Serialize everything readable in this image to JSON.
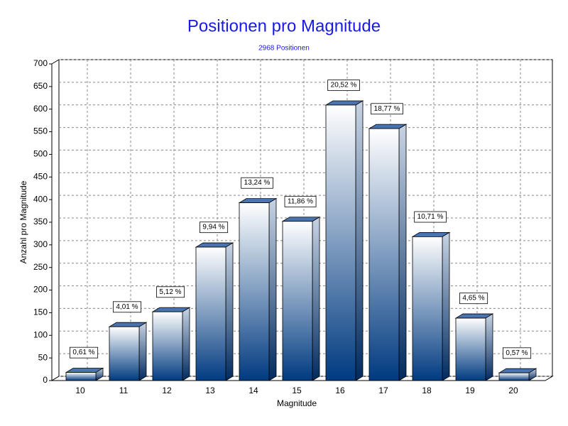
{
  "chart_data": {
    "type": "bar3d",
    "title": "Positionen pro Magnitude",
    "subtitle": "2968 Positionen",
    "x_label": "Magnitude",
    "y_label": "Anzahl pro Magnitude",
    "categories": [
      "10",
      "11",
      "12",
      "13",
      "14",
      "15",
      "16",
      "17",
      "18",
      "19",
      "20"
    ],
    "values": [
      18,
      119,
      152,
      295,
      393,
      352,
      609,
      557,
      318,
      138,
      17
    ],
    "percent_labels": [
      "0,61 %",
      "4,01 %",
      "5,12 %",
      "9,94 %",
      "13,24 %",
      "11,86 %",
      "20,52 %",
      "18,77 %",
      "10,71 %",
      "4,65 %",
      "0,57 %"
    ],
    "color": "#003a80",
    "ylim": [
      0,
      700
    ],
    "yticks": [
      0,
      50,
      100,
      150,
      200,
      250,
      300,
      350,
      400,
      450,
      500,
      550,
      600,
      650,
      700
    ],
    "grid": true
  }
}
